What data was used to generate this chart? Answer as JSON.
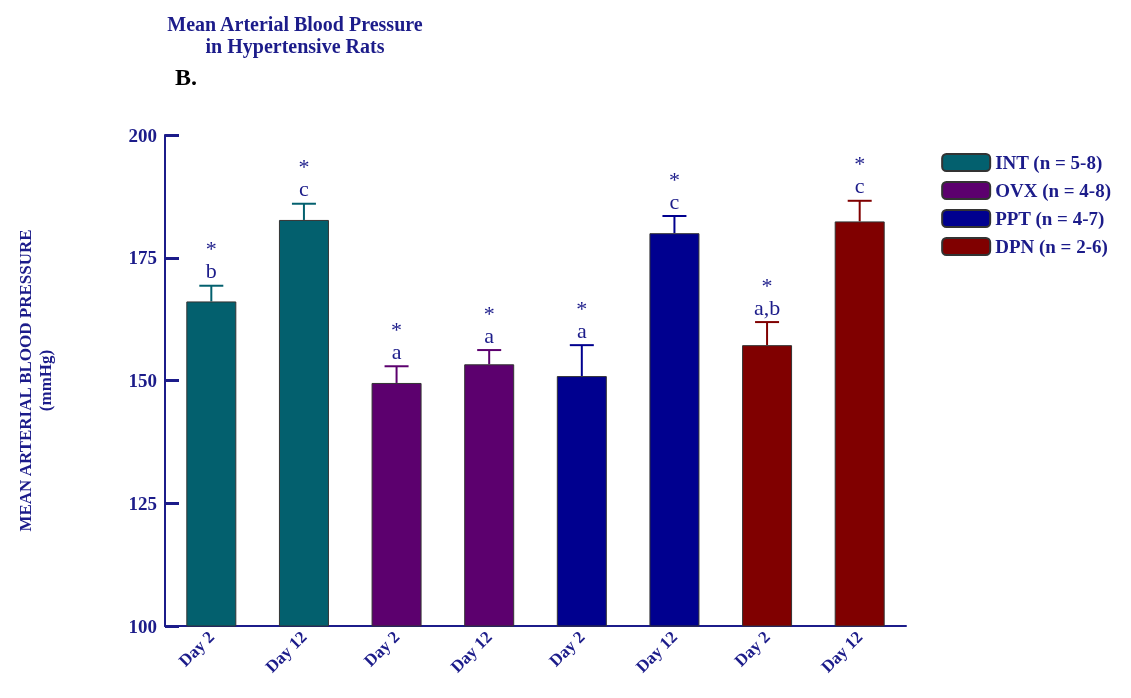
{
  "chart_data": {
    "type": "bar",
    "title": "Mean Arterial Blood Pressure\nin Hypertensive Rats",
    "ylabel": "MEAN ARTERIAL BLOOD PRESSURE\n(mmHg)",
    "categories": [
      "Day 2",
      "Day 12",
      "Day 2",
      "Day 12",
      "Day 2",
      "Day 12",
      "Day 2",
      "Day 12"
    ],
    "series": [
      {
        "name": "INT (n = 5-8)",
        "color": "#03606e",
        "values": [
          166.1,
          182.7,
          null,
          null,
          null,
          null,
          null,
          null
        ],
        "errors": [
          3.2,
          3.3,
          null,
          null,
          null,
          null,
          null,
          null
        ]
      },
      {
        "name": "OVX (n = 4-8)",
        "color": "#5c006e",
        "values": [
          null,
          null,
          149.5,
          153.3,
          null,
          null,
          null,
          null
        ],
        "errors": [
          null,
          null,
          3.4,
          2.9,
          null,
          null,
          null,
          null
        ]
      },
      {
        "name": "PPT (n = 4-7)",
        "color": "#00008f",
        "values": [
          null,
          null,
          null,
          null,
          150.9,
          180.0,
          null,
          null
        ],
        "errors": [
          null,
          null,
          null,
          null,
          6.3,
          3.5,
          null,
          null
        ]
      },
      {
        "name": "DPN (n = 2-6)",
        "color": "#800000",
        "values": [
          null,
          null,
          null,
          null,
          null,
          null,
          157.2,
          182.4
        ],
        "errors": [
          null,
          null,
          null,
          null,
          null,
          null,
          4.7,
          4.2
        ]
      }
    ],
    "annotations": [
      "B.",
      "*\nb",
      "*\nc",
      "*\na",
      "*\na",
      "*\na",
      "*\nc",
      "*\na,b",
      "*\nc"
    ],
    "ylim": [
      100,
      200
    ],
    "yticks": [
      100,
      125,
      150,
      175,
      200
    ],
    "grid": false,
    "legend": "top right"
  }
}
